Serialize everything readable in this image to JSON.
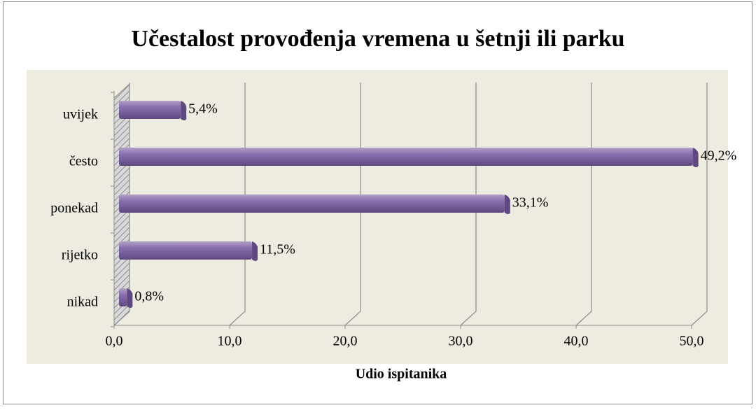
{
  "chart_data": {
    "type": "bar",
    "orientation": "horizontal",
    "title": "Učestalost provođenja vremena u šetnji ili parku",
    "categories": [
      "uvijek",
      "često",
      "ponekad",
      "rijetko",
      "nikad"
    ],
    "values": [
      5.4,
      49.2,
      33.1,
      11.5,
      0.8
    ],
    "value_labels": [
      "5,4%",
      "49,2%",
      "33,1%",
      "11,5%",
      "0,8%"
    ],
    "color": "#8064a2",
    "xlabel": "Udio ispitanika",
    "xlim": [
      0,
      50
    ],
    "xticks": [
      {
        "value": 0,
        "label": "0,0"
      },
      {
        "value": 10,
        "label": "10,0"
      },
      {
        "value": 20,
        "label": "20,0"
      },
      {
        "value": 30,
        "label": "30,0"
      },
      {
        "value": 40,
        "label": "40,0"
      },
      {
        "value": 50,
        "label": "50,0"
      }
    ],
    "grid": true
  }
}
